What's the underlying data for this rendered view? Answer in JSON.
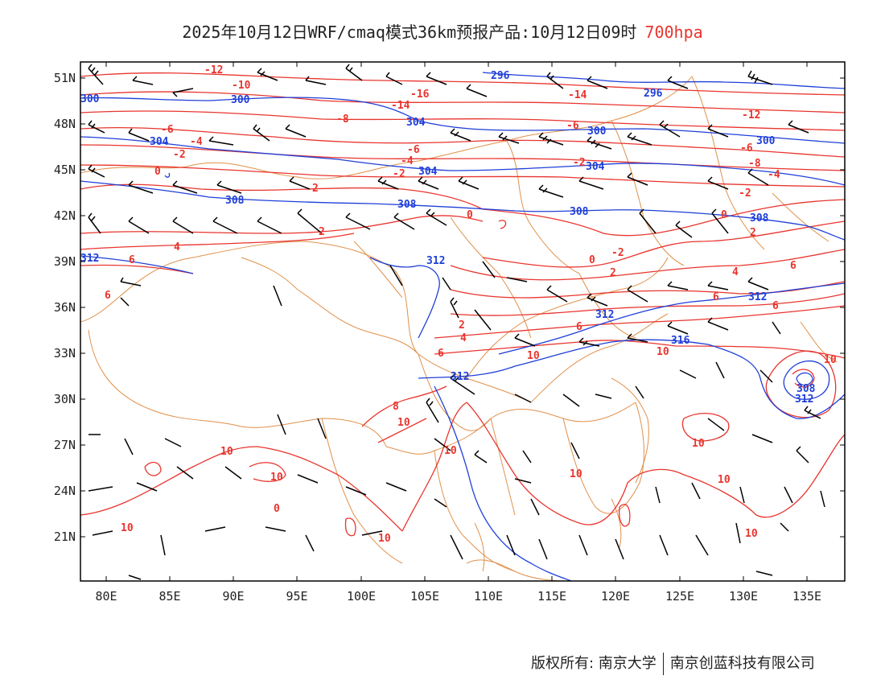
{
  "title": {
    "text": "2025年10月12日WRF/cmaq模式36km预报产品:10月12日09时",
    "level": "700hpa"
  },
  "axes": {
    "lat_ticks": [
      "51N",
      "48N",
      "45N",
      "42N",
      "39N",
      "36N",
      "33N",
      "30N",
      "27N",
      "24N",
      "21N"
    ],
    "lon_ticks": [
      "80E",
      "85E",
      "90E",
      "95E",
      "100E",
      "105E",
      "110E",
      "115E",
      "120E",
      "125E",
      "130E",
      "135E"
    ]
  },
  "colors": {
    "temperature": "#e8352e",
    "height": "#1f3fd8",
    "border": "#e0904a",
    "wind": "#000000"
  },
  "temperature_labels": [
    "-12",
    "-10",
    "-16",
    "-14",
    "-8",
    "-6",
    "-4",
    "-2",
    "0",
    "2",
    "4",
    "6",
    "8",
    "10"
  ],
  "height_labels": [
    "296",
    "300",
    "304",
    "308",
    "312",
    "316"
  ],
  "footer": {
    "copyright": "版权所有: 南京大学",
    "company": "南京创蓝科技有限公司"
  }
}
